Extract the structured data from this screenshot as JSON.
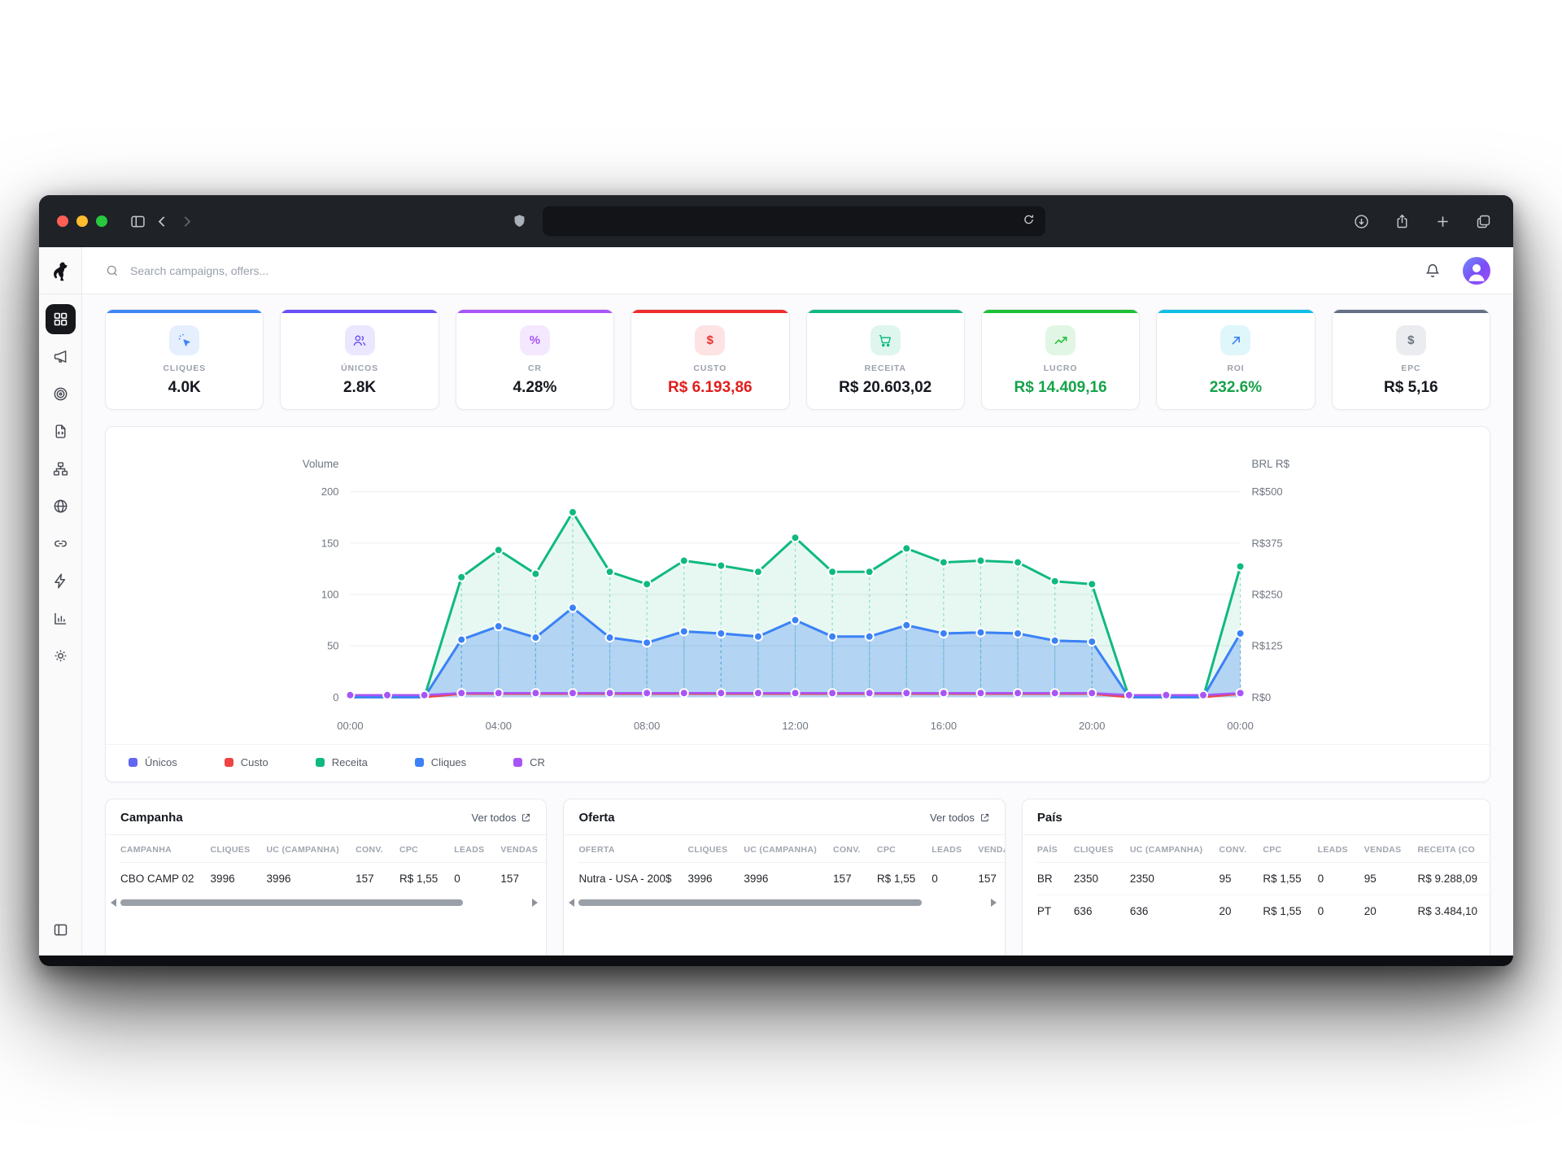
{
  "browser": {
    "address_value": ""
  },
  "topbar": {
    "search_placeholder": "Search campaigns, offers..."
  },
  "sidebar": {
    "items": [
      {
        "name": "dashboard",
        "icon": "grid",
        "active": true
      },
      {
        "name": "campaigns",
        "icon": "megaphone",
        "active": false
      },
      {
        "name": "offers",
        "icon": "target",
        "active": false
      },
      {
        "name": "landing-pages",
        "icon": "file-code",
        "active": false
      },
      {
        "name": "flows",
        "icon": "sitemap",
        "active": false
      },
      {
        "name": "domains",
        "icon": "globe",
        "active": false
      },
      {
        "name": "links",
        "icon": "link",
        "active": false
      },
      {
        "name": "automation",
        "icon": "bolt",
        "active": false
      },
      {
        "name": "reports",
        "icon": "chart-bars",
        "active": false
      },
      {
        "name": "settings",
        "icon": "gear",
        "active": false
      }
    ]
  },
  "kpis": [
    {
      "label": "CLIQUES",
      "value": "4.0K",
      "accent": "#3e86f6",
      "icon": "cursor-click"
    },
    {
      "label": "ÚNICOS",
      "value": "2.8K",
      "accent": "#6b4ef6",
      "icon": "users"
    },
    {
      "label": "CR",
      "value": "4.28%",
      "accent": "#a955f7",
      "icon": "percent"
    },
    {
      "label": "CUSTO",
      "value": "R$ 6.193,86",
      "accent": "#ef2d2d",
      "icon": "dollar",
      "value_color": "#e11d1d"
    },
    {
      "label": "RECEITA",
      "value": "R$ 20.603,02",
      "accent": "#10b981",
      "icon": "cart"
    },
    {
      "label": "LUCRO",
      "value": "R$ 14.409,16",
      "accent": "#1dbf35",
      "icon": "trend-up",
      "value_color": "#16a34a"
    },
    {
      "label": "ROI",
      "value": "232.6%",
      "accent": "#0fbde4",
      "icon": "arrow-up-right",
      "icon_color": "#3b82f6",
      "value_color": "#16a34a"
    },
    {
      "label": "EPC",
      "value": "R$ 5,16",
      "accent": "#667085",
      "icon": "dollar",
      "icon_color": "#6b7280"
    }
  ],
  "chart_data": {
    "type": "line",
    "x_tick_labels": [
      "00:00",
      "04:00",
      "08:00",
      "12:00",
      "16:00",
      "20:00",
      "00:00"
    ],
    "x_tick_hours": [
      0,
      4,
      8,
      12,
      16,
      20,
      24
    ],
    "points_per_hour": 1,
    "left_axis": {
      "title": "Volume",
      "max": 200,
      "ticks": [
        0,
        50,
        100,
        150,
        200
      ]
    },
    "right_axis": {
      "title": "BRL R$",
      "max": 500,
      "ticks": [
        0,
        125,
        250,
        375,
        500
      ],
      "tick_labels": [
        "R$0",
        "R$125",
        "R$250",
        "R$375",
        "R$500"
      ]
    },
    "series": [
      {
        "name": "Únicos",
        "color": "#6366f1",
        "axis": "left",
        "values": [
          0,
          0,
          0,
          56,
          69,
          58,
          87,
          58,
          53,
          64,
          62,
          59,
          75,
          59,
          59,
          70,
          62,
          63,
          62,
          55,
          54,
          0,
          0,
          0,
          62
        ]
      },
      {
        "name": "Custo",
        "color": "#ef4444",
        "axis": "right",
        "values": [
          0,
          0,
          0,
          8,
          8,
          8,
          8,
          8,
          8,
          8,
          8,
          8,
          8,
          8,
          8,
          8,
          8,
          8,
          8,
          8,
          8,
          0,
          0,
          0,
          8
        ]
      },
      {
        "name": "Receita",
        "color": "#10b981",
        "axis": "right",
        "area": "rgba(16,185,129,0.10)",
        "values": [
          0,
          0,
          0,
          292,
          358,
          300,
          450,
          305,
          275,
          332,
          320,
          305,
          388,
          305,
          305,
          362,
          328,
          332,
          328,
          282,
          275,
          0,
          0,
          0,
          318
        ]
      },
      {
        "name": "Cliques",
        "color": "#3b82f6",
        "axis": "left",
        "area": "rgba(59,130,246,0.30)",
        "values": [
          0,
          0,
          0,
          56,
          69,
          58,
          87,
          58,
          53,
          64,
          62,
          59,
          75,
          59,
          59,
          70,
          62,
          63,
          62,
          55,
          54,
          0,
          0,
          0,
          62
        ]
      },
      {
        "name": "CR",
        "color": "#a855f7",
        "axis": "left",
        "values": [
          2,
          2,
          2,
          4,
          4,
          4,
          4,
          4,
          4,
          4,
          4,
          4,
          4,
          4,
          4,
          4,
          4,
          4,
          4,
          4,
          4,
          2,
          2,
          2,
          4
        ]
      }
    ],
    "legend_position": "bottom"
  },
  "tables": [
    {
      "id": "campanha",
      "title": "Campanha",
      "link": "Ver todos",
      "scrollbar": true,
      "columns": [
        "CAMPANHA",
        "CLIQUES",
        "UC (CAMPANHA)",
        "CONV.",
        "CPC",
        "LEADS",
        "VENDAS",
        "R"
      ],
      "rows": [
        [
          "CBO CAMP 02",
          "3996",
          "3996",
          "157",
          "R$ 1,55",
          "0",
          "157",
          "R"
        ]
      ]
    },
    {
      "id": "oferta",
      "title": "Oferta",
      "link": "Ver todos",
      "scrollbar": true,
      "columns": [
        "OFERTA",
        "CLIQUES",
        "UC (CAMPANHA)",
        "CONV.",
        "CPC",
        "LEADS",
        "VENDAS"
      ],
      "rows": [
        [
          "Nutra - USA - 200$",
          "3996",
          "3996",
          "157",
          "R$ 1,55",
          "0",
          "157"
        ]
      ]
    },
    {
      "id": "pais",
      "title": "País",
      "link": "",
      "scrollbar": false,
      "columns": [
        "PAÍS",
        "CLIQUES",
        "UC (CAMPANHA)",
        "CONV.",
        "CPC",
        "LEADS",
        "VENDAS",
        "RECEITA (CO"
      ],
      "rows": [
        [
          "BR",
          "2350",
          "2350",
          "95",
          "R$ 1,55",
          "0",
          "95",
          "R$ 9.288,09"
        ],
        [
          "PT",
          "636",
          "636",
          "20",
          "R$ 1,55",
          "0",
          "20",
          "R$ 3.484,10"
        ]
      ]
    }
  ]
}
